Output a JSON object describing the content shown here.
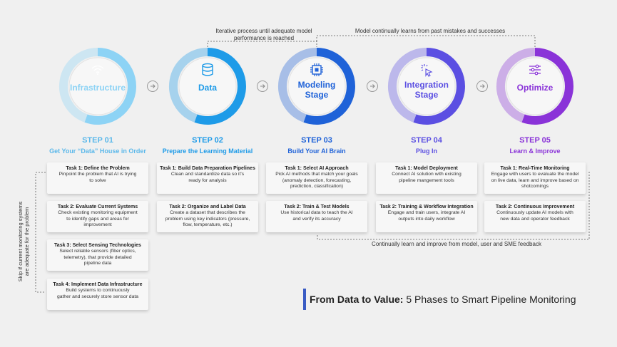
{
  "annotations": {
    "top_left_line1": "Iterative process until adequate model",
    "top_left_line2": "performance is reached",
    "top_right": "Model continually learns from past mistakes and successes",
    "bottom": "Continually learn and improve from model, user and SME feedback",
    "side_line1": "Skip if current monitoring systems",
    "side_line2": "are adequate for the problem"
  },
  "phases": [
    {
      "label": "Infrastructure",
      "color": "#8dd3f5",
      "icon": "wifi-icon",
      "step": "STEP 01",
      "name": "Get Your “Data” House in Order",
      "tasks": [
        {
          "title": "Task 1: Define the Problem",
          "desc": [
            "Pinpoint the problem that AI is trying",
            "to solve"
          ]
        },
        {
          "title": "Task 2: Evaluate Current Systems",
          "desc": [
            "Check existing monitoring equipment",
            "to identify gaps and areas for",
            "improvement"
          ]
        },
        {
          "title": "Task 3: Select Sensing Technologies",
          "desc": [
            "Select reliable sensors (fiber optics,",
            "telemetry), that provide detailed",
            "pipeline data"
          ]
        },
        {
          "title": "Task 4: Implement Data Infrastructure",
          "desc": [
            "Build systems to continuously",
            "gather and securely store sensor data"
          ]
        }
      ]
    },
    {
      "label": "Data",
      "color": "#1e9be8",
      "icon": "database-icon",
      "step": "STEP 02",
      "name": "Prepare the Learning Material",
      "tasks": [
        {
          "title": "Task 1: Build Data Preparation Pipelines",
          "desc": [
            "Clean and standardize data so it's",
            "ready for analysis"
          ]
        },
        {
          "title": "Task 2: Organize and Label Data",
          "desc": [
            "Create a dataset that describes the",
            "problem using key indicators (pressure,",
            "flow, temperature, etc.)"
          ]
        }
      ]
    },
    {
      "label": "Modeling\nStage",
      "color": "#1f62d8",
      "icon": "chip-icon",
      "step": "STEP 03",
      "name": "Build Your AI Brain",
      "tasks": [
        {
          "title": "Task 1: Select AI Approach",
          "desc": [
            "Pick AI methods that match your goals",
            "(anomaly detection, forecasting,",
            "prediction, classification)"
          ]
        },
        {
          "title": "Task 2: Train & Test Models",
          "desc": [
            "Use historical data to teach the AI",
            "and verify its accuracy"
          ]
        }
      ]
    },
    {
      "label": "Integration\nStage",
      "color": "#5b4fe2",
      "icon": "cursor-click-icon",
      "step": "STEP 04",
      "name": "Plug In",
      "tasks": [
        {
          "title": "Task 1: Model Deployment",
          "desc": [
            "Connect AI solution with existing",
            "pipeline mangement tools"
          ]
        },
        {
          "title": "Task 2: Training & Workflow Integration",
          "desc": [
            "Engage and train users, integrate AI",
            "outputs into daily workflow"
          ]
        }
      ]
    },
    {
      "label": "Optimize",
      "color": "#8a33d8",
      "icon": "sliders-icon",
      "step": "STEP 05",
      "name": "Learn & Improve",
      "tasks": [
        {
          "title": "Task 1: Real-Time Monitoring",
          "desc": [
            "Engage with users to evaluate the model",
            "on live data, learn and improve based on",
            "shotcomings"
          ]
        },
        {
          "title": "Task 2: Continuous Improvement",
          "desc": [
            "Continuously update AI models with",
            "new data and operator feedback"
          ]
        }
      ]
    }
  ],
  "title": {
    "bold": "From Data to Value:",
    "rest": " 5 Phases to Smart Pipeline Monitoring"
  }
}
